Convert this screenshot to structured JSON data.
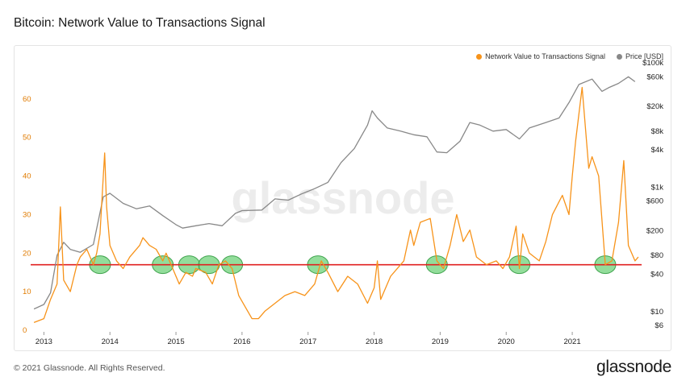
{
  "title": "Bitcoin: Network Value to Transactions Signal",
  "legend": [
    {
      "label": "Network Value to Transactions Signal",
      "color": "#f7931a"
    },
    {
      "label": "Price [USD]",
      "color": "#888888"
    }
  ],
  "footer": "© 2021 Glassnode. All Rights Reserved.",
  "brand": "glassnode",
  "watermark": "glassnode",
  "chart_data": {
    "type": "line",
    "title": "Bitcoin: Network Value to Transactions Signal",
    "x_ticks": [
      "2013",
      "2014",
      "2015",
      "2016",
      "2017",
      "2018",
      "2019",
      "2020",
      "2021"
    ],
    "y_left_ticks": [
      0,
      10,
      20,
      30,
      40,
      50,
      60
    ],
    "y_left_lim": [
      0,
      70
    ],
    "y_right_ticks": [
      "$6",
      "$10",
      "$40",
      "$80",
      "$200",
      "$600",
      "$1k",
      "$4k",
      "$8k",
      "$20k",
      "$60k",
      "$100k"
    ],
    "y_right_values": [
      6,
      10,
      40,
      80,
      200,
      600,
      1000,
      4000,
      8000,
      20000,
      60000,
      100000
    ],
    "y_right_scale": "log",
    "y_right_lim": [
      5,
      110000
    ],
    "threshold": 17,
    "threshold_color": "#e02020",
    "highlight_color": "#6fd17a",
    "highlights": [
      2013.85,
      2014.8,
      2015.2,
      2015.5,
      2015.85,
      2017.15,
      2018.95,
      2020.2,
      2021.5
    ],
    "series": [
      {
        "name": "Network Value to Transactions Signal",
        "color": "#f7931a",
        "axis": "left",
        "x": [
          2012.85,
          2013.0,
          2013.1,
          2013.2,
          2013.25,
          2013.3,
          2013.4,
          2013.5,
          2013.55,
          2013.65,
          2013.75,
          2013.8,
          2013.85,
          2013.9,
          2013.92,
          2013.95,
          2014.0,
          2014.1,
          2014.2,
          2014.3,
          2014.45,
          2014.5,
          2014.6,
          2014.7,
          2014.8,
          2014.85,
          2014.95,
          2015.05,
          2015.15,
          2015.25,
          2015.3,
          2015.45,
          2015.55,
          2015.65,
          2015.75,
          2015.85,
          2015.95,
          2016.05,
          2016.15,
          2016.25,
          2016.35,
          2016.5,
          2016.65,
          2016.8,
          2016.95,
          2017.1,
          2017.2,
          2017.3,
          2017.45,
          2017.6,
          2017.75,
          2017.9,
          2018.0,
          2018.05,
          2018.1,
          2018.25,
          2018.35,
          2018.45,
          2018.55,
          2018.6,
          2018.7,
          2018.85,
          2018.95,
          2019.05,
          2019.15,
          2019.25,
          2019.35,
          2019.45,
          2019.55,
          2019.7,
          2019.85,
          2019.95,
          2020.05,
          2020.15,
          2020.2,
          2020.25,
          2020.35,
          2020.5,
          2020.6,
          2020.7,
          2020.85,
          2020.95,
          2021.0,
          2021.05,
          2021.15,
          2021.25,
          2021.3,
          2021.4,
          2021.5,
          2021.6,
          2021.7,
          2021.78,
          2021.85,
          2021.95,
          2022.0
        ],
        "values": [
          2,
          3,
          8,
          12,
          32,
          13,
          10,
          17,
          19,
          21,
          17,
          20,
          25,
          40,
          46,
          32,
          22,
          18,
          16,
          19,
          22,
          24,
          22,
          21,
          18,
          20,
          16,
          12,
          15,
          14,
          16,
          15,
          12,
          17,
          18,
          16,
          9,
          6,
          3,
          3,
          5,
          7,
          9,
          10,
          9,
          12,
          18,
          15,
          10,
          14,
          12,
          7,
          11,
          18,
          8,
          14,
          16,
          18,
          26,
          22,
          28,
          29,
          18,
          16,
          22,
          30,
          23,
          26,
          19,
          17,
          18,
          16,
          19,
          27,
          16,
          25,
          20,
          18,
          23,
          30,
          35,
          30,
          40,
          49,
          63,
          42,
          45,
          40,
          17,
          18,
          28,
          44,
          22,
          18,
          19
        ]
      },
      {
        "name": "Price [USD]",
        "color": "#888888",
        "axis": "right",
        "x": [
          2012.85,
          2013.0,
          2013.1,
          2013.2,
          2013.3,
          2013.4,
          2013.55,
          2013.75,
          2013.9,
          2014.0,
          2014.2,
          2014.4,
          2014.6,
          2014.8,
          2015.0,
          2015.1,
          2015.3,
          2015.5,
          2015.7,
          2015.9,
          2016.0,
          2016.3,
          2016.5,
          2016.7,
          2016.9,
          2017.1,
          2017.3,
          2017.5,
          2017.7,
          2017.9,
          2017.97,
          2018.05,
          2018.2,
          2018.4,
          2018.6,
          2018.8,
          2018.95,
          2019.1,
          2019.3,
          2019.45,
          2019.6,
          2019.8,
          2020.0,
          2020.2,
          2020.35,
          2020.6,
          2020.8,
          2020.95,
          2021.1,
          2021.3,
          2021.45,
          2021.55,
          2021.7,
          2021.85,
          2021.95
        ],
        "values": [
          11,
          13,
          20,
          80,
          130,
          100,
          90,
          120,
          700,
          800,
          550,
          450,
          500,
          350,
          250,
          220,
          240,
          260,
          240,
          380,
          420,
          430,
          650,
          620,
          780,
          950,
          1200,
          2500,
          4200,
          10000,
          17000,
          13000,
          9000,
          8000,
          7000,
          6500,
          3700,
          3600,
          5500,
          11000,
          10000,
          8000,
          8500,
          6000,
          9000,
          11000,
          13000,
          23000,
          45000,
          55000,
          35000,
          40000,
          47000,
          60000,
          50000
        ]
      }
    ]
  }
}
